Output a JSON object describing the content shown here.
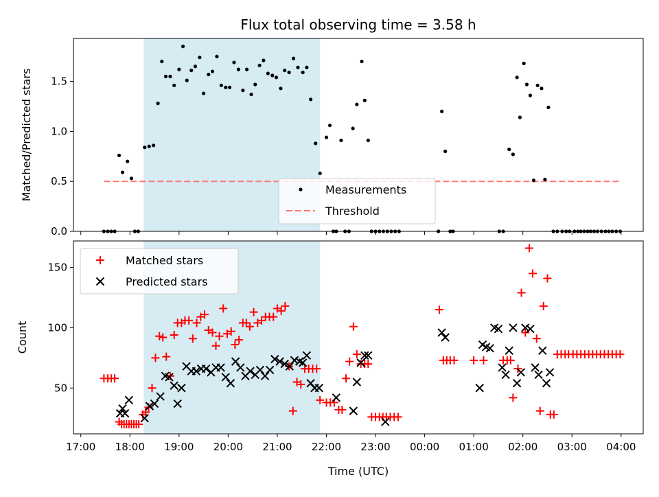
{
  "chart_data": [
    {
      "type": "scatter",
      "title": "Flux total observing time = 3.58 h",
      "ylabel": "Matched/Predicted stars",
      "xlabel": "",
      "x_unit": "hours since 17:00 UTC",
      "xlim": [
        -0.15,
        11.45
      ],
      "ylim": [
        0,
        1.93
      ],
      "yticks": [
        0,
        0.5,
        1.0,
        1.5
      ],
      "ytick_labels": [
        "0.0",
        "0.5",
        "1.0",
        "1.5"
      ],
      "highlight_span": [
        1.28,
        4.87
      ],
      "highlight_color": "#add8e6",
      "threshold": {
        "name": "Threshold",
        "value": 0.5,
        "x_range": [
          0.47,
          10.98
        ],
        "color": "#ff7777"
      },
      "legend": {
        "placement": "lower-center",
        "entries": [
          "Measurements",
          "Threshold"
        ]
      },
      "series": [
        {
          "name": "Measurements",
          "color": "#000000",
          "x": [
            0.47,
            0.55,
            0.62,
            0.69,
            0.78,
            0.85,
            0.95,
            1.03,
            1.1,
            1.17,
            1.3,
            1.39,
            1.48,
            1.57,
            1.65,
            1.73,
            1.82,
            1.9,
            2.0,
            2.08,
            2.16,
            2.25,
            2.33,
            2.42,
            2.5,
            2.6,
            2.68,
            2.77,
            2.86,
            2.95,
            3.03,
            3.12,
            3.21,
            3.3,
            3.38,
            3.47,
            3.55,
            3.64,
            3.72,
            3.81,
            3.9,
            3.98,
            4.07,
            4.15,
            4.24,
            4.33,
            4.42,
            4.52,
            4.6,
            4.68,
            4.78,
            4.87,
            5.0,
            5.07,
            5.14,
            5.2,
            5.3,
            5.38,
            5.46,
            5.54,
            5.62,
            5.72,
            5.78,
            5.85,
            5.92,
            6.0,
            6.08,
            6.16,
            6.24,
            6.32,
            6.4,
            6.48,
            7.28,
            7.35,
            7.42,
            7.52,
            7.58,
            8.52,
            8.6,
            8.72,
            8.8,
            8.88,
            8.94,
            9.02,
            9.08,
            9.15,
            9.22,
            9.3,
            9.38,
            9.45,
            9.52,
            9.62,
            9.7,
            9.8,
            9.88,
            9.95,
            10.05,
            10.12,
            10.18,
            10.25,
            10.32,
            10.38,
            10.45,
            10.52,
            10.6,
            10.68,
            10.75,
            10.82,
            10.9,
            10.98
          ],
          "y": [
            0,
            0,
            0,
            0,
            0.76,
            0.59,
            0.7,
            0.53,
            0,
            0,
            0.84,
            0.85,
            0.86,
            1.28,
            1.7,
            1.55,
            1.55,
            1.46,
            1.62,
            1.85,
            1.51,
            1.61,
            1.65,
            1.74,
            1.38,
            1.57,
            1.6,
            1.75,
            1.46,
            1.44,
            1.44,
            1.69,
            1.62,
            1.41,
            1.62,
            1.37,
            1.47,
            1.66,
            1.71,
            1.58,
            1.56,
            1.54,
            1.43,
            1.61,
            1.59,
            1.73,
            1.64,
            1.59,
            1.64,
            1.32,
            0.88,
            0.58,
            0.94,
            1.06,
            0,
            0,
            0.91,
            0,
            0,
            1.03,
            1.27,
            1.7,
            1.31,
            0.91,
            0,
            0,
            0,
            0,
            0,
            0,
            0,
            0,
            0,
            1.2,
            0.8,
            0,
            0,
            0,
            0,
            0.82,
            0.77,
            1.54,
            1.14,
            1.68,
            1.47,
            1.36,
            0.51,
            1.46,
            1.43,
            0.52,
            1.24,
            0,
            0,
            0,
            0,
            0,
            0,
            0,
            0,
            0,
            0,
            0,
            0,
            0,
            0,
            0,
            0,
            0,
            0,
            0
          ]
        }
      ]
    },
    {
      "type": "scatter",
      "title": "",
      "ylabel": "Count",
      "xlabel": "Time (UTC)",
      "xlim": [
        -0.15,
        11.45
      ],
      "ylim": [
        12,
        172
      ],
      "yticks": [
        50,
        100,
        150
      ],
      "ytick_labels": [
        "50",
        "100",
        "150"
      ],
      "xticks": [
        0,
        1,
        2,
        3,
        4,
        5,
        6,
        7,
        8,
        9,
        10,
        11
      ],
      "xtick_labels": [
        "17:00",
        "18:00",
        "19:00",
        "20:00",
        "21:00",
        "22:00",
        "23:00",
        "00:00",
        "01:00",
        "02:00",
        "03:00",
        "04:00"
      ],
      "highlight_span": [
        1.28,
        4.87
      ],
      "legend": {
        "placement": "top-left",
        "entries": [
          "Matched stars",
          "Predicted stars"
        ]
      },
      "series": [
        {
          "name": "Matched stars",
          "color": "#ff0000",
          "marker": "plus",
          "x": [
            0.47,
            0.55,
            0.62,
            0.69,
            0.78,
            0.83,
            0.88,
            0.93,
            0.98,
            1.03,
            1.08,
            1.13,
            1.18,
            1.26,
            1.32,
            1.38,
            1.45,
            1.52,
            1.6,
            1.67,
            1.74,
            1.82,
            1.9,
            1.97,
            2.05,
            2.12,
            2.2,
            2.28,
            2.36,
            2.44,
            2.52,
            2.6,
            2.68,
            2.75,
            2.82,
            2.9,
            2.98,
            3.06,
            3.14,
            3.22,
            3.3,
            3.37,
            3.44,
            3.52,
            3.6,
            3.68,
            3.76,
            3.84,
            3.92,
            4.0,
            4.08,
            4.16,
            4.24,
            4.32,
            4.4,
            4.48,
            4.56,
            4.64,
            4.72,
            4.8,
            4.87,
            5.0,
            5.08,
            5.16,
            5.25,
            5.32,
            5.4,
            5.47,
            5.55,
            5.62,
            5.7,
            5.78,
            5.85,
            5.92,
            6.0,
            6.08,
            6.15,
            6.22,
            6.3,
            6.38,
            6.46,
            7.3,
            7.38,
            7.45,
            7.52,
            7.6,
            8.0,
            8.2,
            8.6,
            8.68,
            8.75,
            8.8,
            8.9,
            8.97,
            9.05,
            9.13,
            9.2,
            9.28,
            9.35,
            9.42,
            9.5,
            9.56,
            9.63,
            9.7,
            9.78,
            9.86,
            9.93,
            10.02,
            10.1,
            10.18,
            10.26,
            10.34,
            10.42,
            10.5,
            10.58,
            10.66,
            10.74,
            10.82,
            10.9,
            10.98
          ],
          "y": [
            58,
            58,
            58,
            58,
            22,
            20,
            20,
            20,
            20,
            20,
            20,
            20,
            20,
            28,
            30,
            34,
            50,
            75,
            93,
            92,
            76,
            60,
            94,
            104,
            104,
            106,
            106,
            91,
            104,
            109,
            111,
            98,
            96,
            85,
            93,
            116,
            95,
            97,
            86,
            90,
            104,
            104,
            101,
            113,
            104,
            106,
            109,
            109,
            109,
            116,
            114,
            118,
            68,
            31,
            55,
            53,
            66,
            66,
            66,
            66,
            40,
            38,
            38,
            38,
            32,
            32,
            58,
            72,
            101,
            78,
            70,
            70,
            70,
            26,
            26,
            26,
            26,
            26,
            26,
            26,
            26,
            115,
            73,
            73,
            73,
            73,
            73,
            73,
            73,
            73,
            73,
            42,
            66,
            129,
            96,
            166,
            145,
            91,
            31,
            118,
            141,
            28,
            28,
            78,
            78,
            78,
            78,
            78,
            78,
            78,
            78,
            78,
            78,
            78,
            78,
            78,
            78,
            78,
            78,
            78
          ],
          "x_note": "x values are hours since 17:00 UTC"
        },
        {
          "name": "Predicted stars",
          "color": "#000000",
          "marker": "x",
          "x": [
            0.8,
            0.85,
            0.9,
            0.98,
            1.3,
            1.4,
            1.5,
            1.62,
            1.72,
            1.8,
            1.9,
            1.97,
            2.05,
            2.15,
            2.25,
            2.35,
            2.45,
            2.55,
            2.65,
            2.75,
            2.85,
            2.95,
            3.05,
            3.15,
            3.25,
            3.35,
            3.45,
            3.55,
            3.65,
            3.75,
            3.85,
            3.95,
            4.05,
            4.15,
            4.25,
            4.35,
            4.45,
            4.52,
            4.6,
            4.68,
            4.76,
            4.85,
            5.2,
            5.55,
            5.62,
            5.7,
            5.78,
            5.85,
            6.2,
            7.35,
            7.42,
            8.12,
            8.18,
            8.25,
            8.33,
            8.42,
            8.5,
            8.58,
            8.65,
            8.72,
            8.8,
            8.88,
            8.96,
            9.05,
            9.15,
            9.25,
            9.32,
            9.4,
            9.48,
            9.55
          ],
          "y": [
            29,
            33,
            29,
            40,
            25,
            35,
            37,
            43,
            60,
            59,
            52,
            37,
            50,
            68,
            64,
            64,
            66,
            66,
            63,
            67,
            67,
            59,
            54,
            72,
            67,
            60,
            64,
            61,
            65,
            60,
            65,
            74,
            72,
            70,
            68,
            73,
            72,
            71,
            77,
            54,
            50,
            50,
            42,
            31,
            55,
            71,
            77,
            77,
            22,
            96,
            92,
            50,
            86,
            84,
            83,
            100,
            99,
            67,
            61,
            81,
            100,
            54,
            63,
            100,
            99,
            67,
            61,
            81,
            54,
            63
          ]
        }
      ]
    }
  ]
}
